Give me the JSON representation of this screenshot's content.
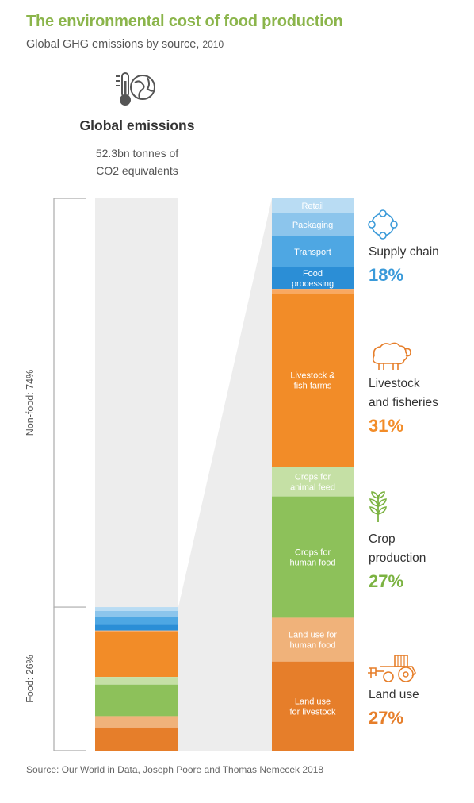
{
  "header": {
    "title": "The environmental cost of food production",
    "subtitle_main": "Global GHG emissions by source,",
    "subtitle_year": "2010"
  },
  "global": {
    "label": "Global emissions",
    "desc_line1": "52.3bn tonnes of",
    "desc_line2": "CO2 equivalents"
  },
  "colors": {
    "title_green": "#8bb54b",
    "blue": "#3a9ad9",
    "orange": "#f28c28",
    "green": "#7cb342",
    "land_use": "#e67e2a"
  },
  "chart_data": [
    {
      "type": "stacked-bar",
      "categories": [
        "Food",
        "Non-food"
      ],
      "values": [
        26,
        74
      ],
      "labels": [
        "Food: 26%",
        "Non-food: 74%"
      ]
    },
    {
      "type": "stacked-bar",
      "series": [
        {
          "name": "Retail",
          "color": "#b9dcf3",
          "weight": 1.0,
          "show_label": true
        },
        {
          "name": "Packaging",
          "color": "#8cc5ec",
          "weight": 1.6,
          "show_label": true
        },
        {
          "name": "Transport",
          "color": "#4ea7e3",
          "weight": 2.1,
          "show_label": true
        },
        {
          "name": "Food processing",
          "color": "#2b8ed6",
          "weight": 1.5,
          "show_label": true
        },
        {
          "name": "",
          "color": "#f9a861",
          "weight": 0.3,
          "show_label": false
        },
        {
          "name": "Livestock & fish farms",
          "color": "#f28c28",
          "weight": 11.9,
          "show_label": true
        },
        {
          "name": "Crops for animal feed",
          "color": "#c5e0a5",
          "weight": 2.0,
          "show_label": true
        },
        {
          "name": "Crops for human food",
          "color": "#8dc15a",
          "weight": 8.3,
          "show_label": true
        },
        {
          "name": "Land use for human food",
          "color": "#f0b27a",
          "weight": 3.0,
          "show_label": true
        },
        {
          "name": "Land use for livestock",
          "color": "#e67e2a",
          "weight": 6.1,
          "show_label": true
        }
      ],
      "groups": [
        {
          "name": "Supply chain",
          "value": "18%",
          "color": "#3a9ad9",
          "icon": "network-icon"
        },
        {
          "name": "Livestock and fisheries",
          "value": "31%",
          "color": "#f28c28",
          "icon": "sheep-icon"
        },
        {
          "name": "Crop production",
          "value": "27%",
          "color": "#7cb342",
          "icon": "wheat-icon"
        },
        {
          "name": "Land use",
          "value": "27%",
          "color": "#e67e2a",
          "icon": "tractor-icon"
        }
      ]
    }
  ],
  "categories": {
    "supply": {
      "name_l1": "Supply chain",
      "pct": "18%"
    },
    "livestock": {
      "name_l1": "Livestock",
      "name_l2": "and fisheries",
      "pct": "31%"
    },
    "crop": {
      "name_l1": "Crop",
      "name_l2": "production",
      "pct": "27%"
    },
    "land": {
      "name_l1": "Land use",
      "pct": "27%"
    }
  },
  "source": "Source: Our World in Data, Joseph Poore and Thomas Nemecek 2018"
}
